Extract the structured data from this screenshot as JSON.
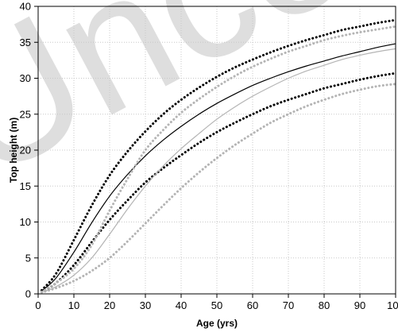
{
  "watermark": "Uncorrected",
  "chart_data": {
    "type": "line",
    "xlabel": "Age (yrs)",
    "ylabel": "Top height (m)",
    "xlim": [
      0,
      100
    ],
    "ylim": [
      0,
      40
    ],
    "xticks": [
      0,
      10,
      20,
      30,
      40,
      50,
      60,
      70,
      80,
      90,
      100
    ],
    "yticks": [
      0,
      5,
      10,
      15,
      20,
      25,
      30,
      35,
      40
    ],
    "grid": true,
    "legend": "none",
    "x": [
      1,
      5,
      10,
      15,
      20,
      25,
      30,
      35,
      40,
      45,
      50,
      55,
      60,
      65,
      70,
      75,
      80,
      85,
      90,
      95,
      100
    ],
    "series": [
      {
        "color": "#000000",
        "style": "dotted",
        "values": [
          0.5,
          2.8,
          7.5,
          12.3,
          16.5,
          19.8,
          22.6,
          25.0,
          27.0,
          28.7,
          30.2,
          31.5,
          32.6,
          33.6,
          34.5,
          35.3,
          36.0,
          36.7,
          37.2,
          37.7,
          38.1
        ]
      },
      {
        "color": "#000000",
        "style": "solid",
        "values": [
          0.4,
          2.2,
          5.8,
          9.9,
          13.6,
          16.6,
          19.2,
          21.4,
          23.3,
          25.0,
          26.5,
          27.8,
          29.0,
          30.0,
          30.9,
          31.7,
          32.4,
          33.1,
          33.7,
          34.3,
          34.8
        ]
      },
      {
        "color": "#000000",
        "style": "dotted",
        "values": [
          0.3,
          1.5,
          4.0,
          7.2,
          10.3,
          13.0,
          15.5,
          17.5,
          19.3,
          21.0,
          22.5,
          23.8,
          25.0,
          26.1,
          27.0,
          27.8,
          28.6,
          29.2,
          29.8,
          30.3,
          30.7
        ]
      },
      {
        "color": "#b4b4b4",
        "style": "dotted",
        "values": [
          0.3,
          1.5,
          3.5,
          6.8,
          11.6,
          16.0,
          20.0,
          22.8,
          25.2,
          27.1,
          28.8,
          30.3,
          31.6,
          32.7,
          33.7,
          34.5,
          35.3,
          35.9,
          36.4,
          36.8,
          37.2
        ]
      },
      {
        "color": "#b4b4b4",
        "style": "solid",
        "values": [
          0.2,
          1.0,
          2.6,
          5.0,
          8.3,
          11.8,
          15.0,
          17.8,
          20.2,
          22.3,
          24.3,
          26.0,
          27.5,
          28.8,
          30.0,
          31.0,
          31.8,
          32.6,
          33.2,
          33.7,
          34.1
        ]
      },
      {
        "color": "#b4b4b4",
        "style": "dotted",
        "values": [
          0.2,
          0.8,
          1.8,
          3.2,
          5.0,
          7.3,
          9.8,
          12.3,
          14.7,
          16.9,
          18.9,
          20.7,
          22.3,
          23.8,
          25.0,
          26.1,
          27.0,
          27.8,
          28.4,
          28.9,
          29.2
        ]
      }
    ]
  }
}
